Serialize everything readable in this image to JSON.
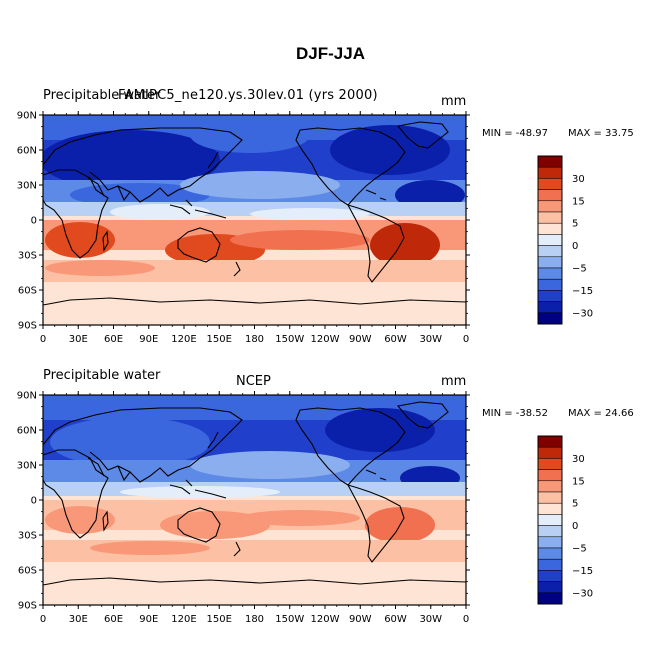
{
  "title": "DJF-JJA",
  "panels": [
    {
      "left_label": "Precipitable water",
      "center_label": "FAMIPC5_ne120.ys.30lev.01 (yrs 2000)",
      "units": "mm",
      "min_label": "MIN = -48.97",
      "max_label": "MAX =  33.75"
    },
    {
      "left_label": "Precipitable water",
      "center_label": "NCEP",
      "units": "mm",
      "min_label": "MIN = -38.52",
      "max_label": "MAX =  24.66"
    }
  ],
  "lat_labels": [
    "90N",
    "60N",
    "30N",
    "0",
    "30S",
    "60S",
    "90S"
  ],
  "lon_labels": [
    "0",
    "30E",
    "60E",
    "90E",
    "120E",
    "150E",
    "180",
    "150W",
    "120W",
    "90W",
    "60W",
    "30W",
    "0"
  ],
  "colorbar": {
    "labels": [
      "30",
      "15",
      "5",
      "0",
      "-5",
      "-15",
      "-30"
    ],
    "colors": [
      "#800000",
      "#c0280a",
      "#e04a1e",
      "#f07050",
      "#f89878",
      "#fcc0a4",
      "#fde4d4",
      "#e4eefa",
      "#b8d0f4",
      "#8aaeee",
      "#5c8ae6",
      "#3a66de",
      "#2040cc",
      "#0a20aa",
      "#000080"
    ]
  },
  "chart_data": {
    "type": "heatmap",
    "title": "DJF-JJA",
    "variable": "Precipitable water",
    "units": "mm",
    "x_axis": "longitude",
    "y_axis": "latitude",
    "maps": [
      {
        "source": "FAMIPC5_ne120.ys.30lev.01 (yrs 2000)",
        "min": -48.97,
        "max": 33.75
      },
      {
        "source": "NCEP",
        "min": -38.52,
        "max": 24.66
      }
    ],
    "levels": [
      -30,
      -15,
      -5,
      0,
      5,
      15,
      30
    ]
  }
}
